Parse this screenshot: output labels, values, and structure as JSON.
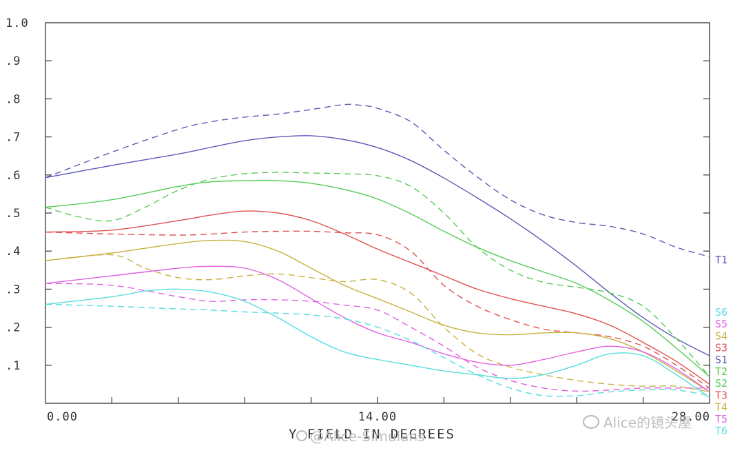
{
  "chart_data": {
    "type": "line",
    "xlabel": "Y FIELD IN DEGREES",
    "xlim": [
      0,
      28
    ],
    "ylim": [
      0,
      1.0
    ],
    "x_tick_labels": [
      {
        "value": 0,
        "label": "0.00"
      },
      {
        "value": 14,
        "label": "14.00"
      },
      {
        "value": 28,
        "label": "28.00"
      }
    ],
    "y_tick_labels": [
      {
        "value": 0.1,
        "label": ".1"
      },
      {
        "value": 0.2,
        "label": ".2"
      },
      {
        "value": 0.3,
        "label": ".3"
      },
      {
        "value": 0.4,
        "label": ".4"
      },
      {
        "value": 0.5,
        "label": ".5"
      },
      {
        "value": 0.6,
        "label": ".6"
      },
      {
        "value": 0.7,
        "label": ".7"
      },
      {
        "value": 0.8,
        "label": ".8"
      },
      {
        "value": 0.9,
        "label": ".9"
      },
      {
        "value": 1.0,
        "label": "1.0"
      }
    ],
    "grid": false,
    "legend_placement": "right",
    "series": [
      {
        "name": "S1",
        "color": "#5a5ab8",
        "dash": "solid",
        "x": [
          0,
          2.8,
          5.6,
          7,
          8.4,
          9.8,
          11.2,
          12.6,
          14,
          15.4,
          16.8,
          18.2,
          19.6,
          21,
          22.4,
          23.8,
          25.2,
          26.6,
          28
        ],
        "y": [
          0.593,
          0.625,
          0.655,
          0.673,
          0.69,
          0.7,
          0.703,
          0.693,
          0.672,
          0.638,
          0.592,
          0.54,
          0.485,
          0.425,
          0.36,
          0.29,
          0.225,
          0.17,
          0.125
        ]
      },
      {
        "name": "T1",
        "color": "#5a5ab8",
        "dash": "dashed",
        "x": [
          0,
          2.8,
          5.6,
          7,
          8.4,
          9.8,
          11.2,
          12.6,
          13.3,
          14,
          15.4,
          16.8,
          18.2,
          19.6,
          21,
          22.4,
          23.8,
          25.2,
          26.6,
          28
        ],
        "y": [
          0.593,
          0.66,
          0.72,
          0.74,
          0.752,
          0.76,
          0.772,
          0.785,
          0.783,
          0.775,
          0.74,
          0.665,
          0.595,
          0.535,
          0.495,
          0.475,
          0.465,
          0.445,
          0.41,
          0.385
        ]
      },
      {
        "name": "S2",
        "color": "#55cc55",
        "dash": "solid",
        "x": [
          0,
          2.8,
          5.6,
          7,
          8.4,
          9.8,
          11.2,
          12.6,
          14,
          15.4,
          16.8,
          18.2,
          19.6,
          21,
          22.4,
          23.8,
          25.2,
          26.6,
          28
        ],
        "y": [
          0.515,
          0.535,
          0.57,
          0.582,
          0.585,
          0.585,
          0.578,
          0.562,
          0.537,
          0.498,
          0.452,
          0.41,
          0.375,
          0.345,
          0.315,
          0.27,
          0.215,
          0.145,
          0.07
        ]
      },
      {
        "name": "T2",
        "color": "#55cc55",
        "dash": "dashed",
        "x": [
          0,
          1.4,
          2.8,
          4.2,
          5.6,
          7,
          8.4,
          9.8,
          11.2,
          12.6,
          14,
          15.4,
          16.8,
          18.2,
          19.6,
          21,
          22.4,
          23.8,
          25.2,
          26.6,
          28
        ],
        "y": [
          0.515,
          0.49,
          0.48,
          0.515,
          0.56,
          0.59,
          0.603,
          0.607,
          0.605,
          0.603,
          0.598,
          0.57,
          0.5,
          0.41,
          0.35,
          0.318,
          0.305,
          0.29,
          0.255,
          0.17,
          0.07
        ]
      },
      {
        "name": "S3",
        "color": "#e05050",
        "dash": "solid",
        "x": [
          0,
          2.8,
          5.6,
          7,
          8.4,
          9.8,
          11.2,
          12.6,
          14,
          15.4,
          16.8,
          18.2,
          19.6,
          21,
          22.4,
          23.8,
          25.2,
          26.6,
          28
        ],
        "y": [
          0.45,
          0.455,
          0.48,
          0.495,
          0.505,
          0.5,
          0.48,
          0.445,
          0.405,
          0.37,
          0.335,
          0.3,
          0.275,
          0.255,
          0.235,
          0.205,
          0.16,
          0.11,
          0.05
        ]
      },
      {
        "name": "T3",
        "color": "#e05050",
        "dash": "dashed",
        "x": [
          0,
          2.8,
          5.6,
          7,
          8.4,
          9.8,
          11.2,
          12.6,
          14,
          15.4,
          16.8,
          18.2,
          19.6,
          21,
          22.4,
          23.8,
          25.2,
          26.6,
          28
        ],
        "y": [
          0.45,
          0.445,
          0.442,
          0.445,
          0.45,
          0.452,
          0.452,
          0.448,
          0.443,
          0.4,
          0.31,
          0.255,
          0.22,
          0.195,
          0.185,
          0.175,
          0.15,
          0.1,
          0.04
        ]
      },
      {
        "name": "S4",
        "color": "#c8b040",
        "dash": "solid",
        "x": [
          0,
          2.8,
          5.6,
          7,
          8.4,
          9.8,
          11.2,
          12.6,
          14,
          15.4,
          16.8,
          18.2,
          19.6,
          21,
          22.4,
          23.8,
          25.2,
          26.6,
          28
        ],
        "y": [
          0.375,
          0.395,
          0.42,
          0.428,
          0.425,
          0.4,
          0.355,
          0.31,
          0.275,
          0.24,
          0.205,
          0.185,
          0.18,
          0.185,
          0.185,
          0.17,
          0.135,
          0.085,
          0.03
        ]
      },
      {
        "name": "T4",
        "color": "#c8b040",
        "dash": "dashed",
        "x": [
          0,
          2.8,
          4.2,
          5.6,
          7,
          8.4,
          9.8,
          11.2,
          12.6,
          14,
          15.4,
          16.8,
          18.2,
          19.6,
          21,
          22.4,
          23.8,
          25.2,
          26.6,
          28
        ],
        "y": [
          0.375,
          0.39,
          0.355,
          0.33,
          0.325,
          0.335,
          0.34,
          0.33,
          0.32,
          0.325,
          0.29,
          0.2,
          0.13,
          0.095,
          0.075,
          0.06,
          0.05,
          0.045,
          0.045,
          0.03
        ]
      },
      {
        "name": "S5",
        "color": "#e060e0",
        "dash": "solid",
        "x": [
          0,
          2.8,
          5.6,
          7,
          8.4,
          9.8,
          11.2,
          12.6,
          14,
          15.4,
          16.8,
          18.2,
          19.6,
          21,
          22.4,
          23.8,
          25.2,
          26.6,
          28
        ],
        "y": [
          0.315,
          0.335,
          0.355,
          0.36,
          0.355,
          0.325,
          0.275,
          0.225,
          0.185,
          0.16,
          0.13,
          0.108,
          0.1,
          0.115,
          0.135,
          0.15,
          0.135,
          0.09,
          0.03
        ]
      },
      {
        "name": "T5",
        "color": "#e060e0",
        "dash": "dashed",
        "x": [
          0,
          2.8,
          5.6,
          7,
          8.4,
          9.8,
          11.2,
          12.6,
          14,
          15.4,
          16.8,
          18.2,
          19.6,
          21,
          22.4,
          23.8,
          25.2,
          26.6,
          28
        ],
        "y": [
          0.315,
          0.31,
          0.28,
          0.268,
          0.272,
          0.272,
          0.268,
          0.258,
          0.245,
          0.2,
          0.15,
          0.095,
          0.06,
          0.04,
          0.032,
          0.035,
          0.04,
          0.04,
          0.04
        ]
      },
      {
        "name": "S6",
        "color": "#55dddd",
        "dash": "solid",
        "x": [
          0,
          2.8,
          4.2,
          5.6,
          7,
          8.4,
          9.8,
          11.2,
          12.6,
          14,
          15.4,
          16.8,
          18.2,
          19.6,
          21,
          22.4,
          23.8,
          25.2,
          26.6,
          28
        ],
        "y": [
          0.26,
          0.28,
          0.295,
          0.3,
          0.292,
          0.268,
          0.225,
          0.175,
          0.135,
          0.115,
          0.1,
          0.085,
          0.075,
          0.065,
          0.075,
          0.1,
          0.13,
          0.125,
          0.075,
          0.015
        ]
      },
      {
        "name": "T6",
        "color": "#55dddd",
        "dash": "dashed",
        "x": [
          0,
          2.8,
          5.6,
          7,
          8.4,
          9.8,
          11.2,
          12.6,
          14,
          15.4,
          16.8,
          18.2,
          19.6,
          21,
          22.4,
          23.8,
          25.2,
          26.6,
          28
        ],
        "y": [
          0.26,
          0.255,
          0.248,
          0.245,
          0.24,
          0.237,
          0.232,
          0.222,
          0.2,
          0.165,
          0.12,
          0.075,
          0.04,
          0.02,
          0.02,
          0.03,
          0.035,
          0.035,
          0.02
        ]
      }
    ],
    "legend_order": [
      "T1",
      "S6",
      "S5",
      "S4",
      "S3",
      "S1",
      "T2",
      "S2",
      "T3",
      "T4",
      "T5",
      "T6"
    ]
  },
  "watermarks": {
    "left": "@Alice-Simulans",
    "right": "Alice的镜头屋"
  }
}
